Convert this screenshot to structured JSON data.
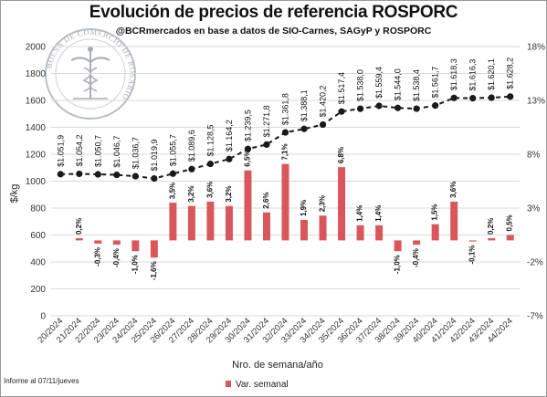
{
  "header": {
    "title": "Evolución de precios de referencia ROSPORC",
    "subtitle": "@BCRmercados en base a datos de SIO-Carnes, SAGyP y ROSPORC"
  },
  "footer": {
    "note": "Informe al 07/11/jueves"
  },
  "logo": {
    "text": "BOLSA DE COMERCIO DE ROSARIO"
  },
  "colors": {
    "bars": "#d9575c",
    "line": "#1a1a1a",
    "grid": "#d9d9d9"
  },
  "chart_data": {
    "type": "bar",
    "title": "Evolución de precios de referencia ROSPORC",
    "xlabel": "Nro. de semana/año",
    "ylabel": "$/kg",
    "ylim": [
      0,
      2000
    ],
    "y2lim": [
      -7,
      18
    ],
    "yticks": [
      "0",
      "200",
      "400",
      "600",
      "800",
      "1000",
      "1200",
      "1400",
      "1600",
      "1800",
      "2000"
    ],
    "y2ticks": [
      "-7%",
      "-2%",
      "3%",
      "8%",
      "13%",
      "18%"
    ],
    "grid": true,
    "legend_position": "bottom",
    "categories": [
      "20/2024",
      "21/2024",
      "22/2024",
      "23/2024",
      "24/2024",
      "25/2024",
      "26/2024",
      "27/2024",
      "28/2024",
      "29/2024",
      "30/2024",
      "31/2024",
      "32/2024",
      "33/2024",
      "34/2024",
      "35/2024",
      "36/2024",
      "37/2024",
      "38/2024",
      "39/2024",
      "40/2024",
      "41/2024",
      "42/2024",
      "43/2024",
      "44/2024"
    ],
    "series": [
      {
        "name": "Var. semanal",
        "type": "bar",
        "axis": "right",
        "values": [
          0,
          0.2,
          -0.3,
          -0.4,
          -1.0,
          -1.6,
          3.5,
          3.2,
          3.6,
          3.2,
          6.5,
          2.6,
          7.1,
          1.9,
          2.3,
          6.8,
          1.4,
          1.4,
          -1.0,
          -0.4,
          1.5,
          3.6,
          -0.1,
          0.2,
          0.5
        ],
        "labels": [
          "",
          "0,2%",
          "-0,3%",
          "-0,4%",
          "-1,0%",
          "-1,6%",
          "3,5%",
          "3,2%",
          "3,6%",
          "3,2%",
          "6,5%",
          "2,6%",
          "7,1%",
          "1,9%",
          "2,3%",
          "6,8%",
          "1,4%",
          "1,4%",
          "-1,0%",
          "-0,4%",
          "1,5%",
          "3,6%",
          "-0,1%",
          "0,2%",
          "0,5%"
        ]
      },
      {
        "type": "line",
        "axis": "left",
        "values": [
          1051.9,
          1054.2,
          1050.7,
          1046.7,
          1036.7,
          1019.9,
          1055.7,
          1089.6,
          1128.5,
          1164.2,
          1239.5,
          1271.8,
          1361.8,
          1388.1,
          1420.2,
          1517.4,
          1538.0,
          1559.4,
          1544.0,
          1538.4,
          1561.7,
          1618.3,
          1616.3,
          1620.1,
          1628.2
        ],
        "labels": [
          "$1.051,9",
          "$1.054,2",
          "$1.050,7",
          "$1.046,7",
          "$1.036,7",
          "$1.019,9",
          "$1.055,7",
          "$1.089,6",
          "$1.128,5",
          "$1.164,2",
          "$1.239,5",
          "$1.271,8",
          "$1.361,8",
          "$1.388,1",
          "$1.420,2",
          "$1.517,4",
          "$1.538,0",
          "$1.559,4",
          "$1.544,0",
          "$1.538,4",
          "$1.561,7",
          "$1.618,3",
          "$1.616,3",
          "$1.620,1",
          "$1.628,2"
        ]
      }
    ]
  }
}
